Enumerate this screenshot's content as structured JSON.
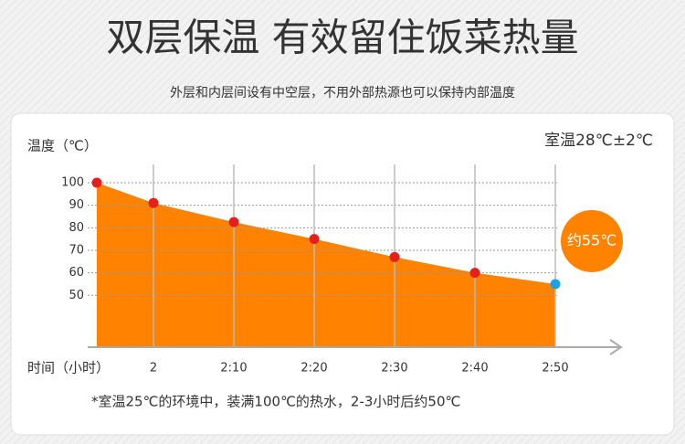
{
  "header": {
    "title": "双层保温 有效留住饭菜热量",
    "subtitle": "外层和内层间设有中空层，不用外部热源也可以保持内部温度"
  },
  "chart_data": {
    "type": "area",
    "y_label": "温度（℃）",
    "x_label": "时间（小时）",
    "room_temp": "室温28℃±2℃",
    "categories": [
      null,
      "2",
      "2:10",
      "2:20",
      "2:30",
      "2:40",
      "2:50"
    ],
    "values": [
      100,
      91,
      82.5,
      75,
      67,
      60,
      55
    ],
    "color": "#ff8200",
    "marker_color": "#e3201b",
    "last_marker_color": "#1ea0e6",
    "annotation": "约55℃",
    "ylim": [
      27,
      100
    ],
    "yticks": [
      50,
      60,
      70,
      80,
      90,
      100
    ],
    "grid": true
  },
  "footnote": "*室温25℃的环境中，装满100℃的热水，2-3小时后约50℃"
}
